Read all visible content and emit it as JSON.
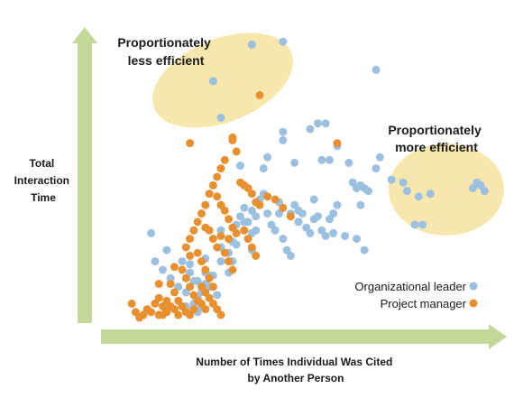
{
  "chart_data": {
    "type": "scatter",
    "title": "",
    "xlabel": [
      "Number of Times Individual Was Cited",
      "by Another Person"
    ],
    "ylabel": [
      "Total",
      "Interaction",
      "Time"
    ],
    "xlim": [
      0,
      100
    ],
    "ylim": [
      0,
      100
    ],
    "grid": false,
    "legend_position": "bottom-right",
    "annotations": [
      {
        "lines": [
          "Proportionately",
          "less efficient"
        ],
        "region": "top-center"
      },
      {
        "lines": [
          "Proportionately",
          "more efficient"
        ],
        "region": "right"
      }
    ],
    "highlight_color": "#f7e7ad",
    "axis_color": "#c3d898",
    "series": [
      {
        "name": "Organizational leader",
        "color": "#9cc0df",
        "points": [
          [
            38,
            97
          ],
          [
            46,
            98
          ],
          [
            70,
            88
          ],
          [
            28,
            84
          ],
          [
            30,
            71
          ],
          [
            53,
            67
          ],
          [
            55,
            69
          ],
          [
            57,
            69
          ],
          [
            60,
            61
          ],
          [
            46,
            63
          ],
          [
            46,
            66
          ],
          [
            49,
            55
          ],
          [
            56,
            56
          ],
          [
            58,
            56
          ],
          [
            63,
            55
          ],
          [
            64,
            48
          ],
          [
            65,
            46
          ],
          [
            66,
            47
          ],
          [
            67,
            46
          ],
          [
            70,
            53
          ],
          [
            71,
            57
          ],
          [
            68,
            45
          ],
          [
            66,
            40
          ],
          [
            60,
            40
          ],
          [
            50,
            38
          ],
          [
            50,
            34
          ],
          [
            59,
            30
          ],
          [
            62,
            29
          ],
          [
            65,
            28
          ],
          [
            67,
            24
          ],
          [
            54,
            42
          ],
          [
            35,
            54
          ],
          [
            41,
            53
          ],
          [
            42,
            57
          ],
          [
            95,
            46
          ],
          [
            96,
            48
          ],
          [
            97,
            47
          ],
          [
            98,
            45
          ],
          [
            77,
            48
          ],
          [
            78,
            45
          ],
          [
            81,
            43
          ],
          [
            84,
            44
          ],
          [
            80,
            33
          ],
          [
            82,
            33
          ],
          [
            74,
            49
          ],
          [
            12,
            30
          ],
          [
            16,
            24
          ],
          [
            22,
            16
          ],
          [
            22,
            19
          ],
          [
            22,
            11
          ],
          [
            23,
            13
          ],
          [
            24,
            13
          ],
          [
            24,
            7
          ],
          [
            25,
            4
          ],
          [
            25,
            9
          ],
          [
            26,
            16
          ],
          [
            26,
            12
          ],
          [
            27,
            15
          ],
          [
            28,
            11
          ],
          [
            30,
            20
          ],
          [
            30,
            25
          ],
          [
            32,
            16
          ],
          [
            33,
            20
          ],
          [
            33,
            27
          ],
          [
            34,
            26
          ],
          [
            34,
            33
          ],
          [
            35,
            36
          ],
          [
            36,
            34
          ],
          [
            36,
            39
          ],
          [
            37,
            34
          ],
          [
            38,
            30
          ],
          [
            38,
            38
          ],
          [
            39,
            36
          ],
          [
            39,
            31
          ],
          [
            40,
            42
          ],
          [
            41,
            44
          ],
          [
            42,
            37
          ],
          [
            43,
            33
          ],
          [
            44,
            31
          ],
          [
            45,
            41
          ],
          [
            45,
            37
          ],
          [
            46,
            28
          ],
          [
            47,
            24
          ],
          [
            48,
            22
          ],
          [
            48,
            37
          ],
          [
            49,
            40
          ],
          [
            50,
            34
          ],
          [
            51,
            37
          ],
          [
            52,
            32
          ],
          [
            53,
            30
          ],
          [
            54,
            35
          ],
          [
            55,
            36
          ],
          [
            56,
            31
          ],
          [
            57,
            29
          ],
          [
            58,
            35
          ],
          [
            59,
            37
          ],
          [
            30,
            31
          ],
          [
            32,
            23
          ],
          [
            36,
            31
          ],
          [
            38,
            24
          ],
          [
            20,
            20
          ],
          [
            27,
            11
          ],
          [
            29,
            8
          ],
          [
            24,
            2
          ],
          [
            23,
            5
          ],
          [
            21,
            9
          ],
          [
            19,
            11
          ],
          [
            17,
            14
          ],
          [
            15,
            17
          ],
          [
            13,
            20
          ],
          [
            21,
            4
          ],
          [
            28,
            15
          ],
          [
            26,
            21
          ]
        ]
      },
      {
        "name": "Project manager",
        "color": "#e8902f",
        "points": [
          [
            40,
            79
          ],
          [
            22,
            62
          ],
          [
            33,
            63
          ],
          [
            33,
            64
          ],
          [
            60,
            62
          ],
          [
            42,
            43
          ],
          [
            44,
            42
          ],
          [
            46,
            39
          ],
          [
            48,
            36
          ],
          [
            35,
            48
          ],
          [
            36,
            47
          ],
          [
            37,
            46
          ],
          [
            38,
            44
          ],
          [
            39,
            41
          ],
          [
            40,
            40
          ],
          [
            29,
            43
          ],
          [
            30,
            40
          ],
          [
            31,
            38
          ],
          [
            32,
            35
          ],
          [
            33,
            32
          ],
          [
            34,
            30
          ],
          [
            27,
            31
          ],
          [
            28,
            28
          ],
          [
            29,
            25
          ],
          [
            36,
            31
          ],
          [
            37,
            28
          ],
          [
            38,
            25
          ],
          [
            39,
            22
          ],
          [
            31,
            23
          ],
          [
            32,
            20
          ],
          [
            33,
            17
          ],
          [
            24,
            23
          ],
          [
            25,
            20
          ],
          [
            26,
            17
          ],
          [
            27,
            14
          ],
          [
            28,
            11
          ],
          [
            20,
            17
          ],
          [
            21,
            14
          ],
          [
            22,
            11
          ],
          [
            23,
            8
          ],
          [
            17,
            12
          ],
          [
            18,
            9
          ],
          [
            19,
            6
          ],
          [
            14,
            7
          ],
          [
            15,
            4
          ],
          [
            16,
            2
          ],
          [
            12,
            2
          ],
          [
            13,
            5
          ],
          [
            10,
            1
          ],
          [
            11,
            3
          ],
          [
            9,
            0
          ],
          [
            8,
            2
          ],
          [
            7,
            5
          ],
          [
            14,
            1
          ],
          [
            15,
            1
          ],
          [
            16,
            6
          ],
          [
            17,
            4
          ],
          [
            18,
            3
          ],
          [
            19,
            1
          ],
          [
            25,
            11
          ],
          [
            26,
            9
          ],
          [
            27,
            7
          ],
          [
            28,
            5
          ],
          [
            29,
            3
          ],
          [
            30,
            1
          ],
          [
            20,
            4
          ],
          [
            21,
            2
          ],
          [
            22,
            1
          ],
          [
            23,
            3
          ],
          [
            24,
            6
          ],
          [
            25,
            5
          ],
          [
            26,
            3
          ],
          [
            21,
            25
          ],
          [
            22,
            28
          ],
          [
            23,
            31
          ],
          [
            24,
            34
          ],
          [
            25,
            37
          ],
          [
            26,
            40
          ],
          [
            27,
            44
          ],
          [
            28,
            47
          ],
          [
            29,
            50
          ],
          [
            30,
            53
          ],
          [
            31,
            56
          ],
          [
            34,
            59
          ],
          [
            26,
            32
          ],
          [
            30,
            29
          ],
          [
            32,
            28
          ],
          [
            22,
            22
          ],
          [
            18,
            18
          ],
          [
            14,
            12
          ]
        ]
      }
    ]
  }
}
